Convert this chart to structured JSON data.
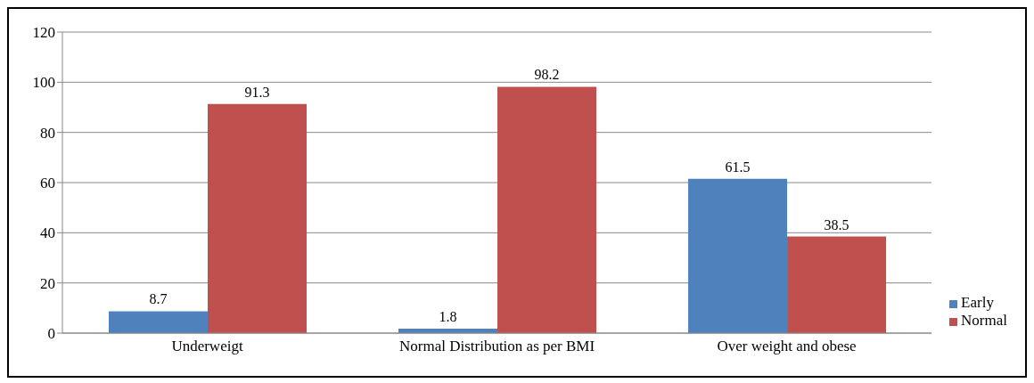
{
  "chart_data": {
    "type": "bar",
    "categories": [
      "Underweigt",
      "Normal Distribution as per BMI",
      "Over weight and obese"
    ],
    "series": [
      {
        "name": "Early",
        "color": "#4f81bd",
        "values": [
          8.7,
          1.8,
          61.5
        ]
      },
      {
        "name": "Normal",
        "color": "#c0504d",
        "values": [
          91.3,
          98.2,
          38.5
        ]
      }
    ],
    "ylim": [
      0,
      120
    ],
    "yticks": [
      0,
      20,
      40,
      60,
      80,
      100,
      120
    ],
    "grid": "y",
    "legend": "right",
    "data_labels": true
  }
}
